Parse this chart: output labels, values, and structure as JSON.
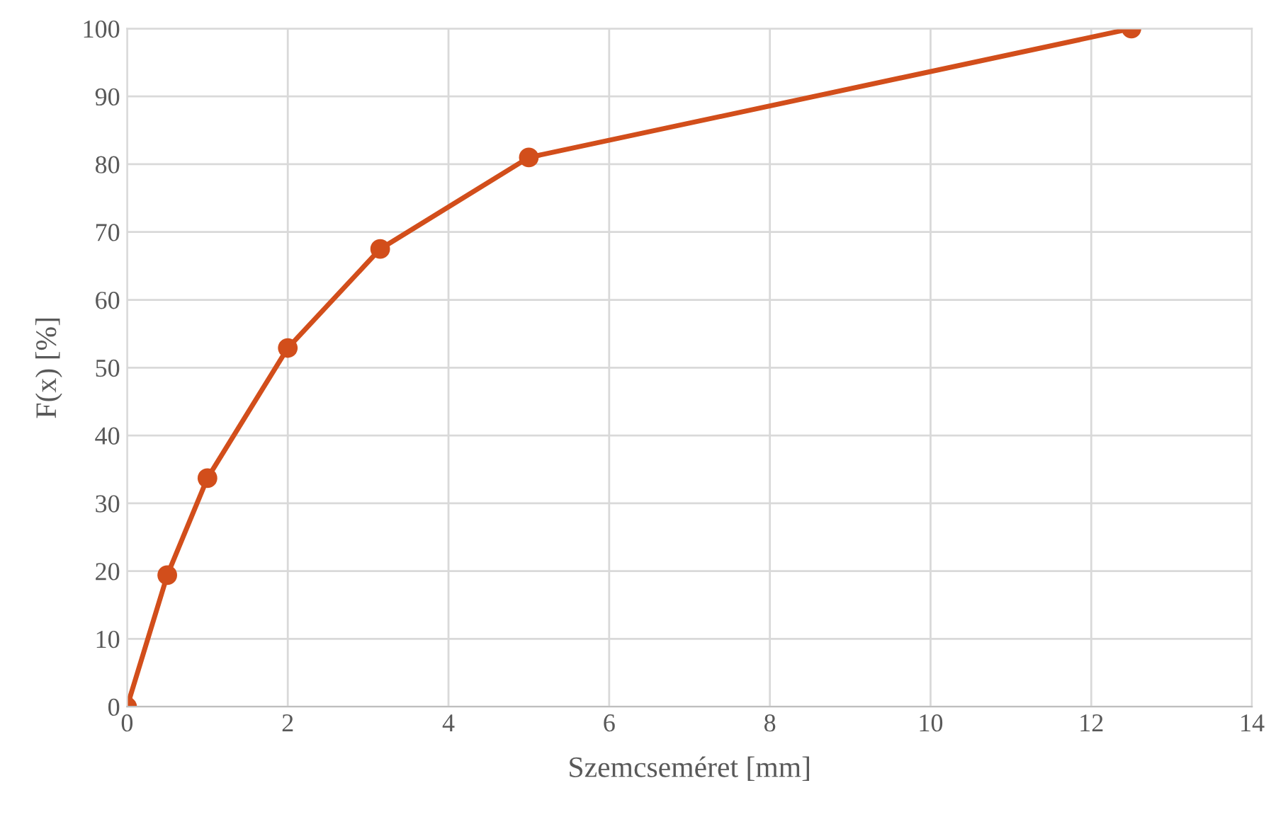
{
  "chart_data": {
    "type": "line",
    "xlabel": "Szemcseméret [mm]",
    "ylabel": "F(x) [%]",
    "series": [
      {
        "color": "#d24e1b",
        "x": [
          0,
          0.5,
          1,
          2,
          3.15,
          5,
          12.5
        ],
        "values": [
          0,
          19.4,
          33.7,
          52.9,
          67.5,
          81,
          100
        ]
      }
    ],
    "xlim": [
      0,
      14
    ],
    "xticks": [
      0,
      2,
      4,
      6,
      8,
      10,
      12,
      14
    ],
    "ylim": [
      0,
      100
    ],
    "yticks": [
      0,
      10,
      20,
      30,
      40,
      50,
      60,
      70,
      80,
      90,
      100
    ],
    "grid": true,
    "marker": "circle",
    "line_style": "solid"
  }
}
